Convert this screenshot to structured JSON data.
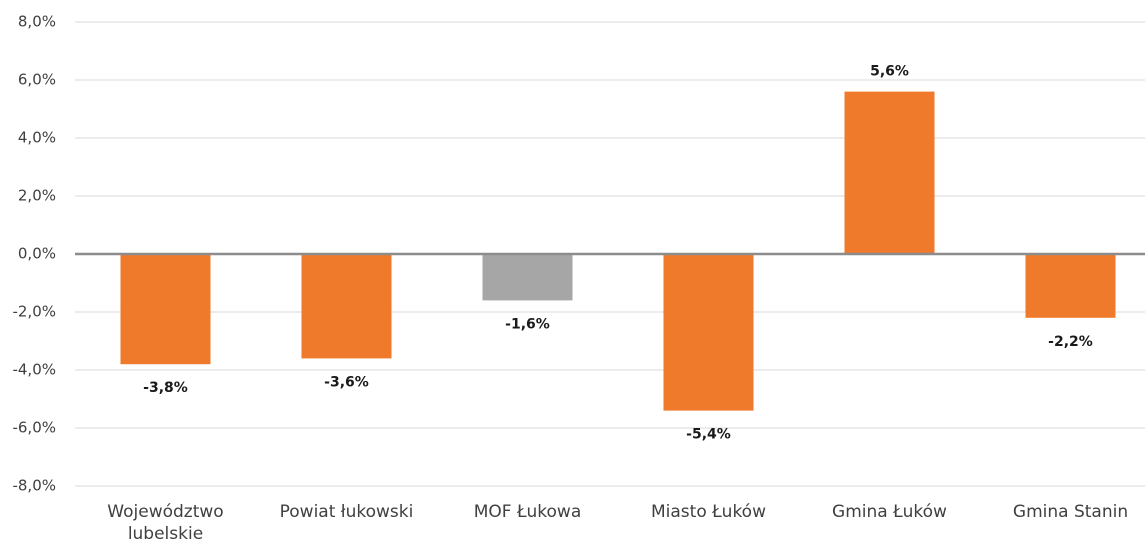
{
  "chart_data": {
    "type": "bar",
    "categories": [
      "Województwo lubelskie",
      "Powiat łukowski",
      "MOF Łukowa",
      "Miasto Łuków",
      "Gmina Łuków",
      "Gmina Stanin"
    ],
    "values": [
      -3.8,
      -3.6,
      -1.6,
      -5.4,
      5.6,
      -2.2
    ],
    "value_labels": [
      "-3,8%",
      "-3,6%",
      "-1,6%",
      "-5,4%",
      "5,6%",
      "-2,2%"
    ],
    "colors": [
      "#f07a2b",
      "#f07a2b",
      "#a6a6a6",
      "#f07a2b",
      "#f07a2b",
      "#f07a2b"
    ],
    "ylim": [
      -8,
      8
    ],
    "yticks": [
      {
        "value": -8,
        "label": "-8,0%"
      },
      {
        "value": -6,
        "label": "-6,0%"
      },
      {
        "value": -4,
        "label": "-4,0%"
      },
      {
        "value": -2,
        "label": "-2,0%"
      },
      {
        "value": 0,
        "label": "0,0%"
      },
      {
        "value": 2,
        "label": "2,0%"
      },
      {
        "value": 4,
        "label": "4,0%"
      },
      {
        "value": 6,
        "label": "6,0%"
      },
      {
        "value": 8,
        "label": "8,0%"
      }
    ],
    "grid": true
  }
}
